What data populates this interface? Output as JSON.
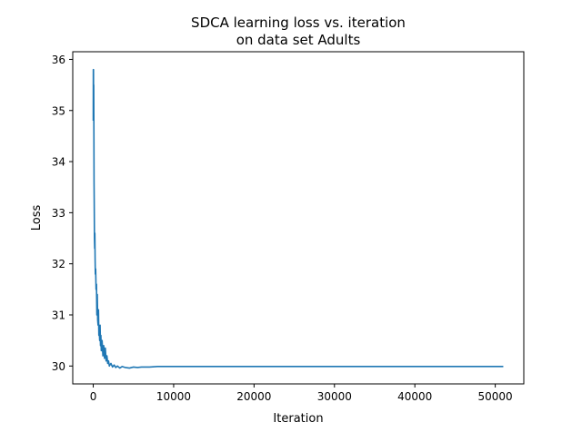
{
  "chart_data": {
    "type": "line",
    "title_lines": [
      "SDCA learning loss vs. iteration",
      "on data set Adults"
    ],
    "xlabel": "Iteration",
    "ylabel": "Loss",
    "xlim": [
      -2550,
      53550
    ],
    "ylim": [
      29.65,
      36.15
    ],
    "xticks": [
      0,
      10000,
      20000,
      30000,
      40000,
      50000
    ],
    "yticks": [
      30,
      31,
      32,
      33,
      34,
      35,
      36
    ],
    "grid": false,
    "legend": "none",
    "series": [
      {
        "color": "#1f77b4",
        "x": [
          0,
          10,
          20,
          30,
          40,
          50,
          60,
          80,
          100,
          120,
          150,
          180,
          200,
          230,
          260,
          300,
          350,
          400,
          450,
          500,
          550,
          600,
          650,
          700,
          750,
          800,
          850,
          900,
          950,
          1000,
          1100,
          1200,
          1300,
          1400,
          1500,
          1600,
          1700,
          1800,
          1900,
          2000,
          2200,
          2400,
          2600,
          2800,
          3000,
          3300,
          3600,
          4000,
          4500,
          5000,
          5500,
          6000,
          7000,
          8000,
          10000,
          15000,
          20000,
          30000,
          40000,
          51000
        ],
        "y": [
          34.8,
          35.8,
          35.3,
          35.8,
          35.2,
          34.9,
          35.5,
          34.6,
          33.6,
          33.2,
          32.5,
          32.3,
          32.6,
          32.1,
          31.8,
          31.9,
          31.5,
          31.6,
          31.0,
          31.4,
          30.9,
          30.8,
          31.1,
          30.6,
          30.7,
          30.5,
          30.8,
          30.4,
          30.6,
          30.3,
          30.5,
          30.2,
          30.4,
          30.15,
          30.35,
          30.1,
          30.2,
          30.05,
          30.1,
          30.0,
          30.05,
          29.98,
          30.02,
          29.97,
          30.0,
          29.96,
          29.99,
          29.97,
          29.96,
          29.98,
          29.97,
          29.98,
          29.98,
          29.99,
          29.99,
          29.99,
          29.99,
          29.99,
          29.99,
          29.99
        ]
      }
    ]
  }
}
